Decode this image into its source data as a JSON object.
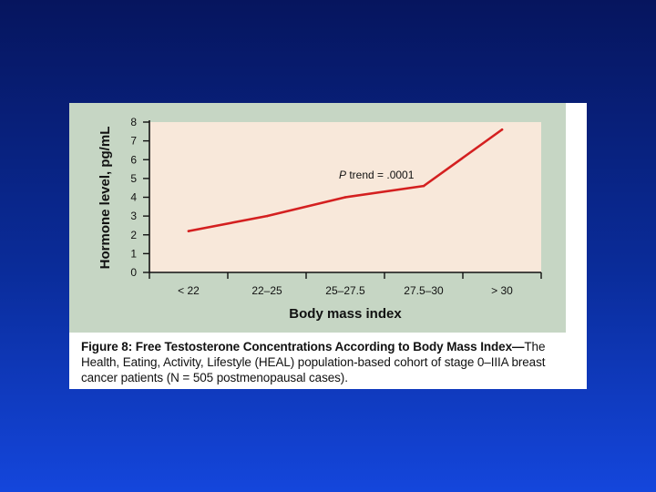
{
  "caption": {
    "figure_label": "Figure 8: Free Testosterone Concentrations According to Body Mass Index—",
    "body": "The Health, Eating, Activity, Lifestyle (HEAL) population-based cohort of stage 0–IIIA breast cancer patients (N = 505 postmenopausal cases)."
  },
  "colors": {
    "background_top": "#06155e",
    "background_bottom": "#1446dc",
    "panel": "#c6d6c4",
    "plot_area": "#f8e8da",
    "line": "#d42020"
  },
  "chart_data": {
    "type": "line",
    "xlabel": "Body mass index",
    "ylabel": "Hormone level, pg/mL",
    "categories": [
      "< 22",
      "22–25",
      "25–27.5",
      "27.5–30",
      "> 30"
    ],
    "yticks": [
      0,
      1,
      2,
      3,
      4,
      5,
      6,
      7,
      8
    ],
    "ylim": [
      0,
      8
    ],
    "series": [
      {
        "values": [
          2.2,
          3.0,
          4.0,
          4.6,
          7.6
        ]
      }
    ],
    "annotations": [
      {
        "italic": "P",
        "text": " trend = .0001"
      }
    ],
    "grid": false,
    "legend": "none"
  }
}
